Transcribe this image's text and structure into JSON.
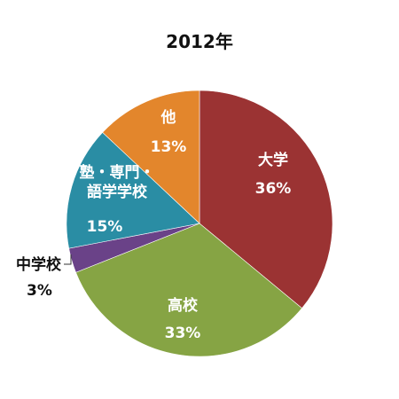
{
  "chart_data": {
    "type": "pie",
    "title": "2012年",
    "start_angle_deg": 0,
    "direction": "clockwise",
    "slices": [
      {
        "label": "大学",
        "value": 36,
        "display": "36%",
        "color": "#9B3333",
        "label_color": "#ffffff"
      },
      {
        "label": "高校",
        "value": 33,
        "display": "33%",
        "color": "#86A444",
        "label_color": "#ffffff"
      },
      {
        "label": "中学校",
        "value": 3,
        "display": "3%",
        "color": "#6A4288",
        "label_color": "#111111"
      },
      {
        "label": "塾・専門・\n語学学校",
        "value": 15,
        "display": "15%",
        "color": "#2A8DA4",
        "label_color": "#ffffff"
      },
      {
        "label": "他",
        "value": 13,
        "display": "13%",
        "color": "#E3862C",
        "label_color": "#ffffff"
      }
    ]
  }
}
